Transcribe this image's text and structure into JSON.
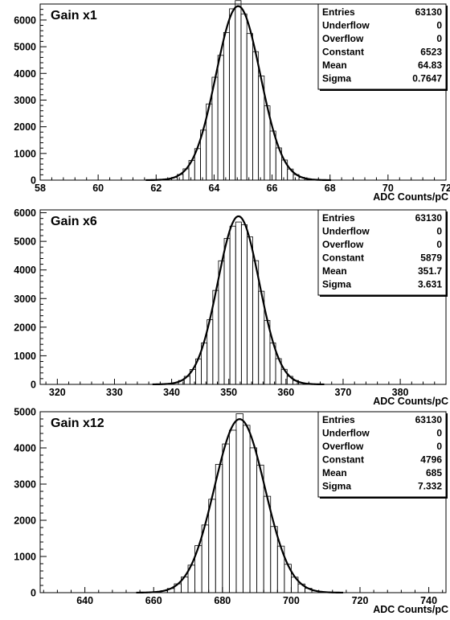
{
  "chart_data": [
    {
      "type": "histogram",
      "title": "Gain x1",
      "xlabel": "ADC Counts/pC",
      "ylabel": "",
      "xlim": [
        58,
        72
      ],
      "ylim": [
        0,
        6600
      ],
      "xticks": [
        58,
        60,
        62,
        64,
        66,
        68,
        70,
        72
      ],
      "yticks": [
        0,
        1000,
        2000,
        3000,
        4000,
        5000,
        6000
      ],
      "bin_width": 0.2,
      "fit": {
        "function": "gaus",
        "constant": 6523,
        "mean": 64.83,
        "sigma": 0.7647
      },
      "stats": [
        {
          "label": "Entries",
          "value": "63130"
        },
        {
          "label": "Underflow",
          "value": "0"
        },
        {
          "label": "Overflow",
          "value": "0"
        },
        {
          "label": "Constant",
          "value": "6523"
        },
        {
          "label": "Mean",
          "value": "64.83"
        },
        {
          "label": "Sigma",
          "value": "0.7647"
        }
      ]
    },
    {
      "type": "histogram",
      "title": "Gain x6",
      "xlabel": "ADC Counts/pC",
      "ylabel": "",
      "xlim": [
        317,
        388
      ],
      "ylim": [
        0,
        6100
      ],
      "xticks": [
        320,
        330,
        340,
        350,
        360,
        370,
        380
      ],
      "yticks": [
        0,
        1000,
        2000,
        3000,
        4000,
        5000,
        6000
      ],
      "bin_width": 1.0,
      "fit": {
        "function": "gaus",
        "constant": 5879,
        "mean": 351.7,
        "sigma": 3.631
      },
      "stats": [
        {
          "label": "Entries",
          "value": "63130"
        },
        {
          "label": "Underflow",
          "value": "0"
        },
        {
          "label": "Overflow",
          "value": "0"
        },
        {
          "label": "Constant",
          "value": "5879"
        },
        {
          "label": "Mean",
          "value": "351.7"
        },
        {
          "label": "Sigma",
          "value": "3.631"
        }
      ]
    },
    {
      "type": "histogram",
      "title": "Gain x12",
      "xlabel": "ADC Counts/pC",
      "ylabel": "",
      "xlim": [
        627,
        745
      ],
      "ylim": [
        0,
        5000
      ],
      "xticks": [
        640,
        660,
        680,
        700,
        720,
        740
      ],
      "yticks": [
        0,
        1000,
        2000,
        3000,
        4000,
        5000
      ],
      "bin_width": 2.0,
      "fit": {
        "function": "gaus",
        "constant": 4796,
        "mean": 685,
        "sigma": 7.332
      },
      "stats": [
        {
          "label": "Entries",
          "value": "63130"
        },
        {
          "label": "Underflow",
          "value": "0"
        },
        {
          "label": "Overflow",
          "value": "0"
        },
        {
          "label": "Constant",
          "value": "4796"
        },
        {
          "label": "Mean",
          "value": "685"
        },
        {
          "label": "Sigma",
          "value": "7.332"
        }
      ]
    }
  ]
}
